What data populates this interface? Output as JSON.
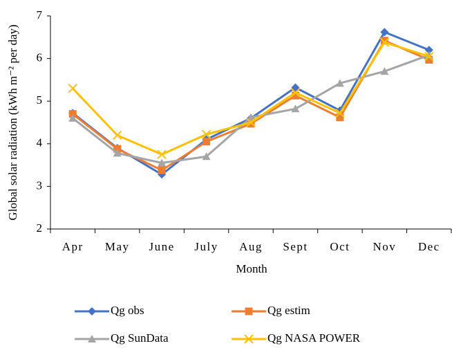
{
  "chart_data": {
    "type": "line",
    "x_label": "Month",
    "y_label": "Global solar radiation (kWh m⁻² per day)",
    "categories": [
      "Apr",
      "May",
      "June",
      "July",
      "Aug",
      "Sept",
      "Oct",
      "Nov",
      "Dec"
    ],
    "series": [
      {
        "name": "Qg obs",
        "color": "#4472c4",
        "marker": "diamond",
        "values": [
          4.72,
          3.9,
          3.28,
          4.1,
          4.6,
          5.32,
          4.78,
          6.62,
          6.2
        ]
      },
      {
        "name": "Qg estim",
        "color": "#ed7d31",
        "marker": "square",
        "values": [
          4.7,
          3.88,
          3.38,
          4.05,
          4.47,
          5.13,
          4.62,
          6.42,
          5.97
        ]
      },
      {
        "name": "Qg SunData",
        "color": "#a5a5a5",
        "marker": "triangle",
        "values": [
          4.6,
          3.78,
          3.55,
          3.7,
          4.62,
          4.82,
          5.42,
          5.7,
          6.08
        ]
      },
      {
        "name": "Qg NASA POWER",
        "color": "#ffc000",
        "marker": "x",
        "values": [
          5.3,
          4.2,
          3.75,
          4.22,
          4.5,
          5.2,
          4.72,
          6.38,
          6.05
        ]
      }
    ],
    "ylim": [
      2,
      7
    ],
    "yticks": [
      2,
      3,
      4,
      5,
      6,
      7
    ],
    "grid": false
  }
}
